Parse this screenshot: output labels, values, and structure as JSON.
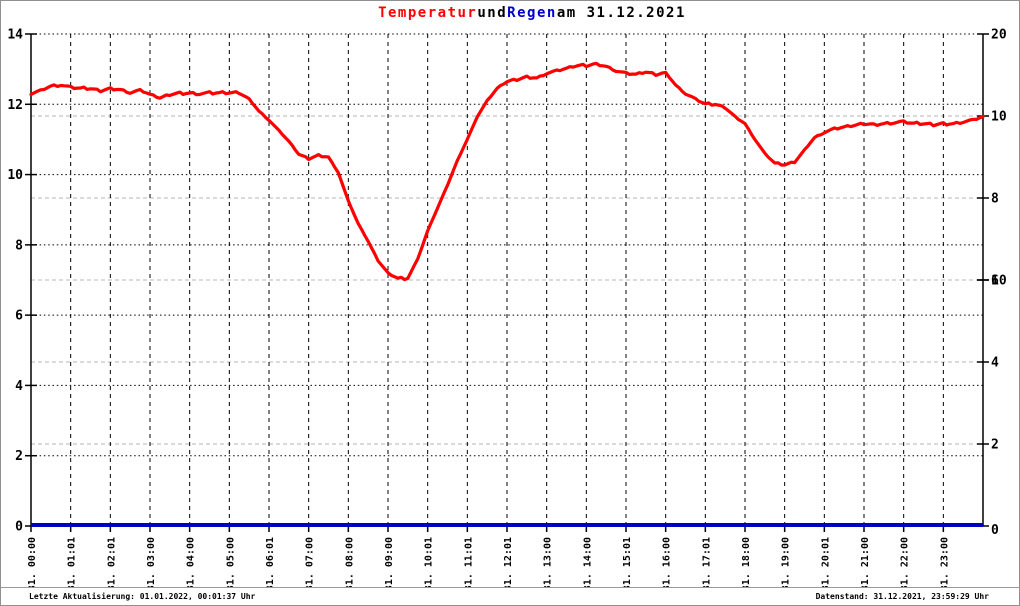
{
  "title": {
    "temperature_label": "Temperatur",
    "conjunction": "und",
    "rain_label": "Regen",
    "date_suffix": "am 31.12.2021"
  },
  "footer": {
    "last_update": "Letzte Aktualisierung: 01.01.2022, 00:01:37 Uhr",
    "data_state": "Datenstand: 31.12.2021, 23:59:29 Uhr"
  },
  "colors": {
    "temperature_line": "#ff0000",
    "rain_line": "#0000c4",
    "green_axis_text": "#00e400",
    "axis_black": "#000000",
    "grid_dotted_black": "#000000",
    "grid_dashed_gray": "#b4b4b4",
    "frame_border": "#909090",
    "title_red": "#ff0000",
    "title_blue": "#0000cc"
  },
  "chart_data": {
    "type": "line",
    "title": "Temperatur und Regen am 31.12.2021",
    "x_axis": {
      "tick_labels": [
        "31. 00:00",
        "31. 01:01",
        "31. 02:01",
        "31. 03:00",
        "31. 04:00",
        "31. 05:00",
        "31. 06:01",
        "31. 07:00",
        "31. 08:00",
        "31. 09:00",
        "31. 10:01",
        "31. 11:01",
        "31. 12:01",
        "31. 13:00",
        "31. 14:00",
        "31. 15:01",
        "31. 16:00",
        "31. 17:01",
        "31. 18:00",
        "31. 19:00",
        "31. 20:01",
        "31. 21:00",
        "31. 22:00",
        "31. 23:00"
      ],
      "hours_span": 24,
      "grid": "dashed-black-every-hour"
    },
    "left_axis": {
      "series": "Temperatur",
      "min": 0,
      "max": 14,
      "ticks": [
        0,
        2,
        4,
        6,
        8,
        10,
        12,
        14
      ],
      "grid": "dotted-black"
    },
    "right_axis_outer": {
      "series": "Regen",
      "min": 0,
      "max": 20,
      "ticks": [
        0,
        10,
        20
      ],
      "label_color": "black"
    },
    "right_axis_inner": {
      "min": 0,
      "max": 12,
      "ticks": [
        2,
        4,
        6,
        8,
        10
      ],
      "label_color": "green",
      "grid": "dashed-gray"
    },
    "series": [
      {
        "name": "Temperatur",
        "axis": "left",
        "color": "#ff0000",
        "x_start_hours": 0,
        "x_step_hours": 0.25,
        "values": [
          12.3,
          12.4,
          12.52,
          12.55,
          12.48,
          12.45,
          12.45,
          12.38,
          12.45,
          12.42,
          12.33,
          12.4,
          12.28,
          12.18,
          12.28,
          12.32,
          12.32,
          12.3,
          12.32,
          12.32,
          12.33,
          12.32,
          12.15,
          11.8,
          11.55,
          11.25,
          10.95,
          10.58,
          10.45,
          10.55,
          10.5,
          10.05,
          9.25,
          8.6,
          8.1,
          7.55,
          7.2,
          7.05,
          7.05,
          7.6,
          8.4,
          9.05,
          9.7,
          10.4,
          11.0,
          11.65,
          12.1,
          12.45,
          12.65,
          12.7,
          12.78,
          12.75,
          12.88,
          12.95,
          13.02,
          13.1,
          13.1,
          13.15,
          13.08,
          12.95,
          12.88,
          12.85,
          12.92,
          12.85,
          12.9,
          12.55,
          12.3,
          12.15,
          12.0,
          12.0,
          11.9,
          11.65,
          11.45,
          11.0,
          10.6,
          10.32,
          10.28,
          10.35,
          10.7,
          11.05,
          11.2,
          11.3,
          11.35,
          11.4,
          11.45,
          11.42,
          11.45,
          11.48,
          11.5,
          11.45,
          11.45,
          11.42,
          11.45,
          11.45,
          11.5,
          11.55,
          11.65
        ]
      },
      {
        "name": "Regen",
        "axis": "right_outer",
        "color": "#0000c4",
        "constant_value": 0,
        "x_range_hours": [
          0,
          24
        ]
      }
    ]
  }
}
